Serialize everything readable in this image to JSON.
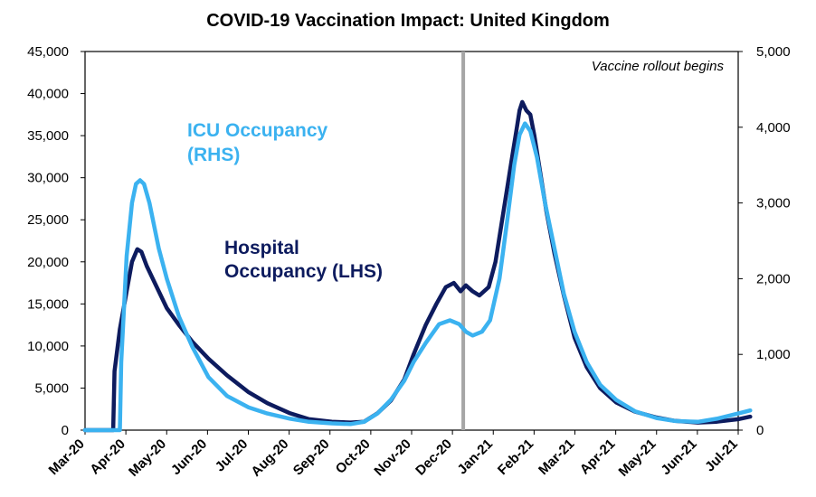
{
  "chart_data": {
    "type": "line",
    "title": "COVID-19 Vaccination Impact: United Kingdom",
    "x_ticks": [
      "Mar-20",
      "Apr-20",
      "May-20",
      "Jun-20",
      "Jul-20",
      "Aug-20",
      "Sep-20",
      "Oct-20",
      "Nov-20",
      "Dec-20",
      "Jan-21",
      "Feb-21",
      "Mar-21",
      "Apr-21",
      "May-21",
      "Jun-21",
      "Jul-21"
    ],
    "y_left": {
      "ticks": [
        "0",
        "5,000",
        "10,000",
        "15,000",
        "20,000",
        "25,000",
        "30,000",
        "35,000",
        "40,000",
        "45,000"
      ],
      "lim": [
        0,
        45000
      ]
    },
    "y_right": {
      "ticks": [
        "0",
        "1,000",
        "2,000",
        "3,000",
        "4,000",
        "5,000"
      ],
      "lim": [
        0,
        5000
      ]
    },
    "grid": false,
    "series": [
      {
        "name": "Hospital Occupancy (LHS)",
        "axis": "left",
        "color": "#0d1b5e",
        "points": [
          [
            "2020-03-01",
            0
          ],
          [
            "2020-03-22",
            0
          ],
          [
            "2020-03-23",
            7000
          ],
          [
            "2020-03-27",
            12000
          ],
          [
            "2020-04-01",
            16500
          ],
          [
            "2020-04-05",
            20000
          ],
          [
            "2020-04-09",
            21500
          ],
          [
            "2020-04-12",
            21200
          ],
          [
            "2020-04-16",
            19500
          ],
          [
            "2020-04-22",
            17500
          ],
          [
            "2020-05-01",
            14500
          ],
          [
            "2020-05-10",
            12500
          ],
          [
            "2020-05-20",
            10500
          ],
          [
            "2020-06-01",
            8500
          ],
          [
            "2020-06-15",
            6500
          ],
          [
            "2020-07-01",
            4500
          ],
          [
            "2020-07-15",
            3200
          ],
          [
            "2020-08-01",
            2000
          ],
          [
            "2020-08-15",
            1300
          ],
          [
            "2020-09-01",
            1000
          ],
          [
            "2020-09-15",
            900
          ],
          [
            "2020-09-25",
            1000
          ],
          [
            "2020-10-05",
            2000
          ],
          [
            "2020-10-15",
            3500
          ],
          [
            "2020-10-25",
            6000
          ],
          [
            "2020-11-01",
            9000
          ],
          [
            "2020-11-10",
            12500
          ],
          [
            "2020-11-18",
            15000
          ],
          [
            "2020-11-25",
            17000
          ],
          [
            "2020-12-01",
            17500
          ],
          [
            "2020-12-06",
            16500
          ],
          [
            "2020-12-10",
            17200
          ],
          [
            "2020-12-15",
            16500
          ],
          [
            "2020-12-20",
            16000
          ],
          [
            "2020-12-27",
            17000
          ],
          [
            "2021-01-01",
            20000
          ],
          [
            "2021-01-06",
            25000
          ],
          [
            "2021-01-10",
            29000
          ],
          [
            "2021-01-14",
            33000
          ],
          [
            "2021-01-17",
            36000
          ],
          [
            "2021-01-19",
            38000
          ],
          [
            "2021-01-21",
            39000
          ],
          [
            "2021-01-24",
            38000
          ],
          [
            "2021-01-27",
            37500
          ],
          [
            "2021-01-30",
            35000
          ],
          [
            "2021-02-03",
            31000
          ],
          [
            "2021-02-08",
            26000
          ],
          [
            "2021-02-14",
            21000
          ],
          [
            "2021-02-21",
            16000
          ],
          [
            "2021-03-01",
            11000
          ],
          [
            "2021-03-10",
            7500
          ],
          [
            "2021-03-20",
            5000
          ],
          [
            "2021-04-01",
            3300
          ],
          [
            "2021-04-15",
            2200
          ],
          [
            "2021-05-01",
            1500
          ],
          [
            "2021-05-15",
            1100
          ],
          [
            "2021-06-01",
            900
          ],
          [
            "2021-06-15",
            1000
          ],
          [
            "2021-07-01",
            1300
          ],
          [
            "2021-07-10",
            1600
          ]
        ]
      },
      {
        "name": "ICU Occupancy (RHS)",
        "axis": "right",
        "color": "#3bb2f0",
        "points": [
          [
            "2020-03-01",
            0
          ],
          [
            "2020-03-27",
            0
          ],
          [
            "2020-03-28",
            900
          ],
          [
            "2020-04-01",
            2300
          ],
          [
            "2020-04-05",
            3000
          ],
          [
            "2020-04-08",
            3250
          ],
          [
            "2020-04-11",
            3300
          ],
          [
            "2020-04-14",
            3250
          ],
          [
            "2020-04-18",
            3000
          ],
          [
            "2020-04-25",
            2400
          ],
          [
            "2020-05-01",
            2000
          ],
          [
            "2020-05-10",
            1500
          ],
          [
            "2020-05-20",
            1100
          ],
          [
            "2020-06-01",
            700
          ],
          [
            "2020-06-15",
            450
          ],
          [
            "2020-07-01",
            300
          ],
          [
            "2020-07-15",
            220
          ],
          [
            "2020-08-01",
            150
          ],
          [
            "2020-08-15",
            110
          ],
          [
            "2020-09-01",
            90
          ],
          [
            "2020-09-15",
            80
          ],
          [
            "2020-09-25",
            110
          ],
          [
            "2020-10-05",
            220
          ],
          [
            "2020-10-15",
            400
          ],
          [
            "2020-10-25",
            650
          ],
          [
            "2020-11-01",
            900
          ],
          [
            "2020-11-10",
            1150
          ],
          [
            "2020-11-20",
            1400
          ],
          [
            "2020-11-28",
            1450
          ],
          [
            "2020-12-05",
            1400
          ],
          [
            "2020-12-10",
            1300
          ],
          [
            "2020-12-15",
            1250
          ],
          [
            "2020-12-22",
            1300
          ],
          [
            "2020-12-28",
            1450
          ],
          [
            "2021-01-04",
            2000
          ],
          [
            "2021-01-10",
            2800
          ],
          [
            "2021-01-15",
            3500
          ],
          [
            "2021-01-19",
            3900
          ],
          [
            "2021-01-23",
            4050
          ],
          [
            "2021-01-27",
            3950
          ],
          [
            "2021-02-01",
            3600
          ],
          [
            "2021-02-07",
            3000
          ],
          [
            "2021-02-14",
            2400
          ],
          [
            "2021-02-21",
            1800
          ],
          [
            "2021-03-01",
            1300
          ],
          [
            "2021-03-10",
            900
          ],
          [
            "2021-03-20",
            600
          ],
          [
            "2021-04-01",
            400
          ],
          [
            "2021-04-15",
            250
          ],
          [
            "2021-05-01",
            160
          ],
          [
            "2021-05-15",
            120
          ],
          [
            "2021-06-01",
            110
          ],
          [
            "2021-06-15",
            150
          ],
          [
            "2021-07-01",
            220
          ],
          [
            "2021-07-10",
            260
          ]
        ]
      }
    ],
    "annotations": {
      "icu_label_line1": "ICU Occupancy",
      "icu_label_line2": "(RHS)",
      "hosp_label_line1": "Hospital",
      "hosp_label_line2": "Occupancy (LHS)",
      "vaccine_label": "Vaccine rollout begins",
      "vaccine_date": "2020-12-08"
    }
  }
}
